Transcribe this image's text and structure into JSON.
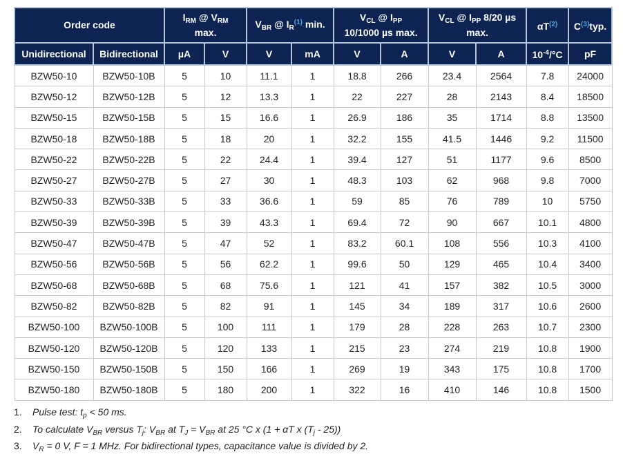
{
  "header": {
    "order_code": "Order code",
    "irm": {
      "a": "I",
      "a_sub": "RM",
      "b": " @ V",
      "b_sub": "RM",
      "c": "max."
    },
    "vbr": {
      "a": "V",
      "a_sub": "BR",
      "b": " @ I",
      "b_sub": "R",
      "ref": "(1)",
      "c": " min."
    },
    "vcl1": {
      "a": "V",
      "a_sub": "CL",
      "b": " @ I",
      "b_sub": "PP",
      "c": "10/1000 µs max."
    },
    "vcl2": {
      "a": "V",
      "a_sub": "CL",
      "b": " @ I",
      "b_sub": "PP",
      "b2": " 8/20 µs",
      "c": "max."
    },
    "at": {
      "a": "αT",
      "ref": "(2)"
    },
    "c": {
      "a": "C",
      "ref": "(3)",
      "b": "typ."
    },
    "units": [
      "Unidirectional",
      "Bidirectional",
      "µA",
      "V",
      "V",
      "mA",
      "V",
      "A",
      "V",
      "A",
      "10-4/°C",
      "pF"
    ],
    "unit_at": {
      "a": "10",
      "sup": "-4",
      "b": "/°C"
    }
  },
  "rows": [
    [
      "BZW50-10",
      "BZW50-10B",
      "5",
      "10",
      "11.1",
      "1",
      "18.8",
      "266",
      "23.4",
      "2564",
      "7.8",
      "24000"
    ],
    [
      "BZW50-12",
      "BZW50-12B",
      "5",
      "12",
      "13.3",
      "1",
      "22",
      "227",
      "28",
      "2143",
      "8.4",
      "18500"
    ],
    [
      "BZW50-15",
      "BZW50-15B",
      "5",
      "15",
      "16.6",
      "1",
      "26.9",
      "186",
      "35",
      "1714",
      "8.8",
      "13500"
    ],
    [
      "BZW50-18",
      "BZW50-18B",
      "5",
      "18",
      "20",
      "1",
      "32.2",
      "155",
      "41.5",
      "1446",
      "9.2",
      "11500"
    ],
    [
      "BZW50-22",
      "BZW50-22B",
      "5",
      "22",
      "24.4",
      "1",
      "39.4",
      "127",
      "51",
      "1177",
      "9.6",
      "8500"
    ],
    [
      "BZW50-27",
      "BZW50-27B",
      "5",
      "27",
      "30",
      "1",
      "48.3",
      "103",
      "62",
      "968",
      "9.8",
      "7000"
    ],
    [
      "BZW50-33",
      "BZW50-33B",
      "5",
      "33",
      "36.6",
      "1",
      "59",
      "85",
      "76",
      "789",
      "10",
      "5750"
    ],
    [
      "BZW50-39",
      "BZW50-39B",
      "5",
      "39",
      "43.3",
      "1",
      "69.4",
      "72",
      "90",
      "667",
      "10.1",
      "4800"
    ],
    [
      "BZW50-47",
      "BZW50-47B",
      "5",
      "47",
      "52",
      "1",
      "83.2",
      "60.1",
      "108",
      "556",
      "10.3",
      "4100"
    ],
    [
      "BZW50-56",
      "BZW50-56B",
      "5",
      "56",
      "62.2",
      "1",
      "99.6",
      "50",
      "129",
      "465",
      "10.4",
      "3400"
    ],
    [
      "BZW50-68",
      "BZW50-68B",
      "5",
      "68",
      "75.6",
      "1",
      "121",
      "41",
      "157",
      "382",
      "10.5",
      "3000"
    ],
    [
      "BZW50-82",
      "BZW50-82B",
      "5",
      "82",
      "91",
      "1",
      "145",
      "34",
      "189",
      "317",
      "10.6",
      "2600"
    ],
    [
      "BZW50-100",
      "BZW50-100B",
      "5",
      "100",
      "111",
      "1",
      "179",
      "28",
      "228",
      "263",
      "10.7",
      "2300"
    ],
    [
      "BZW50-120",
      "BZW50-120B",
      "5",
      "120",
      "133",
      "1",
      "215",
      "23",
      "274",
      "219",
      "10.8",
      "1900"
    ],
    [
      "BZW50-150",
      "BZW50-150B",
      "5",
      "150",
      "166",
      "1",
      "269",
      "19",
      "343",
      "175",
      "10.8",
      "1700"
    ],
    [
      "BZW50-180",
      "BZW50-180B",
      "5",
      "180",
      "200",
      "1",
      "322",
      "16",
      "410",
      "146",
      "10.8",
      "1500"
    ]
  ],
  "notes": [
    {
      "num": "1.",
      "html": "Pulse test: t<sub>p</sub> &lt; 50 ms."
    },
    {
      "num": "2.",
      "html": "To calculate V<sub>BR</sub> versus T<sub>j</sub>: V<sub>BR</sub> at T<sub>J</sub> = V<sub>BR</sub> at 25 °C x (1 + αT x (T<sub>j</sub> - 25))"
    },
    {
      "num": "3.",
      "html": "V<sub>R</sub> = 0 V, F = 1 MHz. For bidirectional types, capacitance value is divided by 2."
    }
  ]
}
